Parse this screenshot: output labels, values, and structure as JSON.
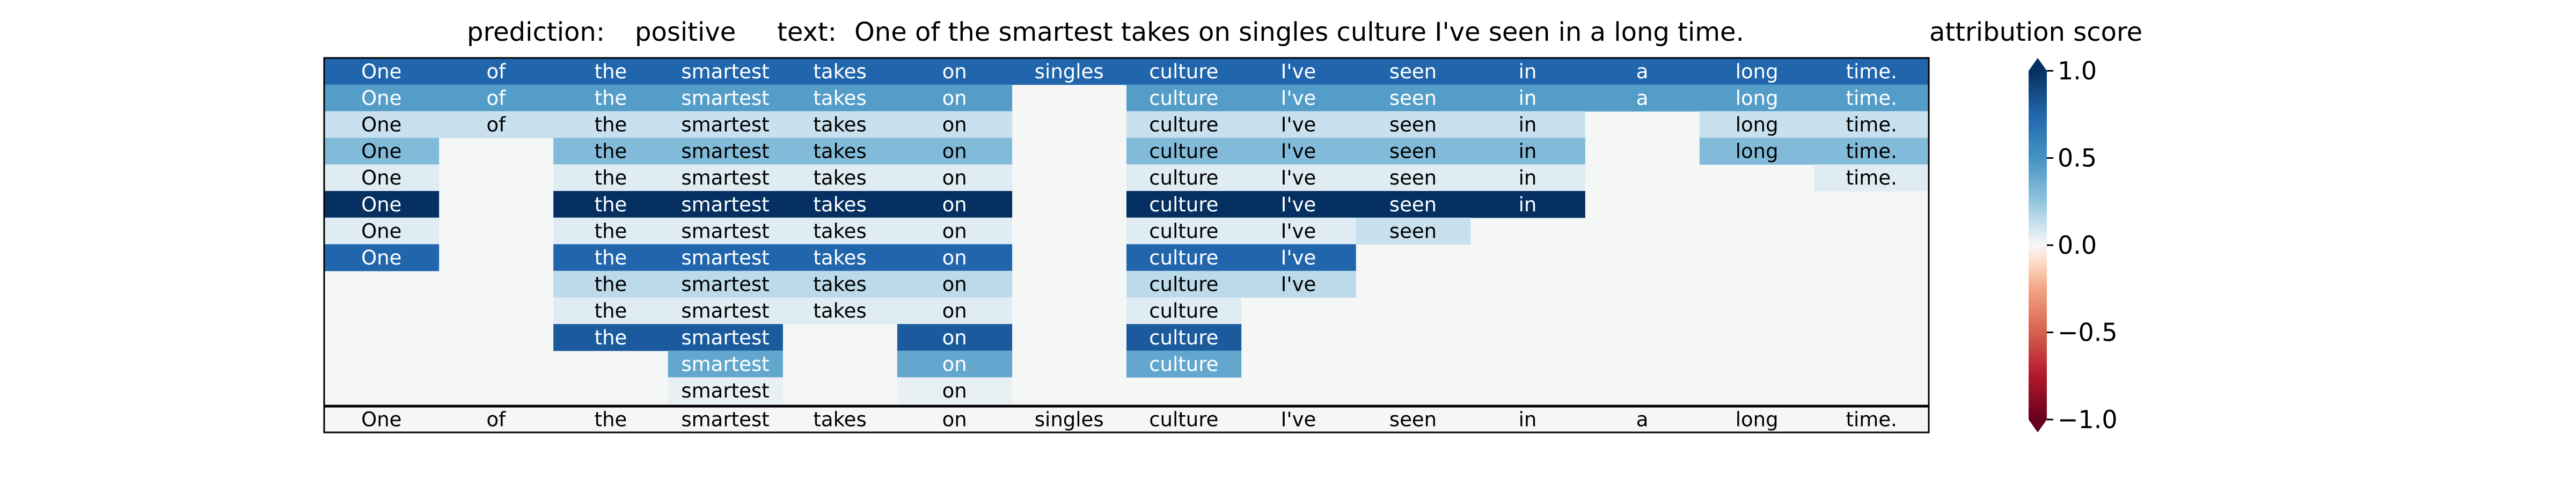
{
  "header": {
    "prediction_label": "prediction:",
    "prediction_value": "positive",
    "text_label": "text:",
    "text_value": "One of the smartest takes on singles culture I've seen in a long time."
  },
  "chart_data": {
    "type": "heatmap",
    "title": "attribution score",
    "columns": [
      "One",
      "of",
      "the",
      "smartest",
      "takes",
      "on",
      "singles",
      "culture",
      "I've",
      "seen",
      "in",
      "a",
      "long",
      "time."
    ],
    "footer_row": [
      "One",
      "of",
      "the",
      "smartest",
      "takes",
      "on",
      "singles",
      "culture",
      "I've",
      "seen",
      "in",
      "a",
      "long",
      "time."
    ],
    "rows": [
      [
        0.75,
        0.75,
        0.75,
        0.75,
        0.75,
        0.75,
        0.75,
        0.75,
        0.75,
        0.75,
        0.75,
        0.75,
        0.75,
        0.75
      ],
      [
        0.45,
        0.45,
        0.45,
        0.45,
        0.45,
        0.45,
        null,
        0.45,
        0.45,
        0.45,
        0.45,
        0.45,
        0.45,
        0.45
      ],
      [
        0.12,
        0.12,
        0.12,
        0.12,
        0.12,
        0.12,
        null,
        0.12,
        0.12,
        0.12,
        0.12,
        null,
        0.12,
        0.12
      ],
      [
        0.3,
        null,
        0.3,
        0.3,
        0.3,
        0.3,
        null,
        0.3,
        0.3,
        0.3,
        0.3,
        null,
        0.3,
        0.3
      ],
      [
        0.06,
        null,
        0.06,
        0.06,
        0.06,
        0.06,
        null,
        0.06,
        0.06,
        0.06,
        0.06,
        null,
        null,
        0.06
      ],
      [
        1.0,
        null,
        1.0,
        1.0,
        1.0,
        1.0,
        null,
        1.0,
        1.0,
        1.0,
        1.0,
        null,
        null,
        null
      ],
      [
        0.06,
        null,
        0.06,
        0.06,
        0.06,
        0.06,
        null,
        0.06,
        0.06,
        0.12,
        null,
        null,
        null,
        null
      ],
      [
        0.75,
        null,
        0.75,
        0.75,
        0.75,
        0.75,
        null,
        0.75,
        0.75,
        null,
        null,
        null,
        null,
        null
      ],
      [
        null,
        null,
        0.15,
        0.15,
        0.15,
        0.15,
        null,
        0.15,
        0.15,
        null,
        null,
        null,
        null,
        null
      ],
      [
        null,
        null,
        0.06,
        0.06,
        0.06,
        0.06,
        null,
        0.06,
        null,
        null,
        null,
        null,
        null,
        null
      ],
      [
        null,
        null,
        0.8,
        0.8,
        null,
        0.8,
        null,
        0.8,
        null,
        null,
        null,
        null,
        null,
        null
      ],
      [
        null,
        null,
        null,
        0.4,
        null,
        0.4,
        null,
        0.4,
        null,
        null,
        null,
        null,
        null,
        null
      ],
      [
        null,
        null,
        null,
        0.04,
        null,
        0.04,
        null,
        null,
        null,
        null,
        null,
        null,
        null,
        null
      ]
    ],
    "colorbar": {
      "colormap": "RdBu",
      "min": -1.0,
      "max": 1.0,
      "ticks": [
        1.0,
        0.5,
        0.0,
        -0.5,
        -1.0
      ],
      "tick_labels": [
        "1.0",
        "0.5",
        "0.0",
        "−0.5",
        "−1.0"
      ],
      "extend": "both"
    },
    "colors": {
      "background": "#f5f6f6",
      "frame": "#000000"
    }
  }
}
